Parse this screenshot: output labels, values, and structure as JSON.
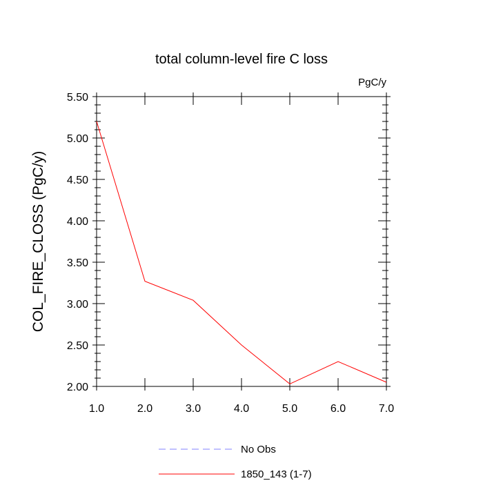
{
  "chart_data": {
    "type": "line",
    "title": "total column-level fire C loss",
    "units": "PgC/y",
    "xlabel": "",
    "ylabel": "COL_FIRE_CLOSS  (PgC/y)",
    "xlim": [
      1.0,
      7.0
    ],
    "ylim": [
      2.0,
      5.5
    ],
    "x_ticks": [
      1.0,
      2.0,
      3.0,
      4.0,
      5.0,
      6.0,
      7.0
    ],
    "x_tick_labels": [
      "1.0",
      "2.0",
      "3.0",
      "4.0",
      "5.0",
      "6.0",
      "7.0"
    ],
    "y_ticks": [
      2.0,
      2.5,
      3.0,
      3.5,
      4.0,
      4.5,
      5.0,
      5.5
    ],
    "y_tick_labels": [
      "2.00",
      "2.50",
      "3.00",
      "3.50",
      "4.00",
      "4.50",
      "5.00",
      "5.50"
    ],
    "grid": false,
    "legend_position": "bottom",
    "series": [
      {
        "name": "No Obs",
        "color": "#8080ff",
        "dashed": true,
        "x": [],
        "values": []
      },
      {
        "name": "1850_143 (1-7)",
        "color": "#ff0000",
        "dashed": false,
        "x": [
          1,
          2,
          3,
          4,
          5,
          6,
          7
        ],
        "values": [
          5.2,
          3.27,
          3.04,
          2.5,
          2.03,
          2.3,
          2.05
        ]
      }
    ]
  }
}
